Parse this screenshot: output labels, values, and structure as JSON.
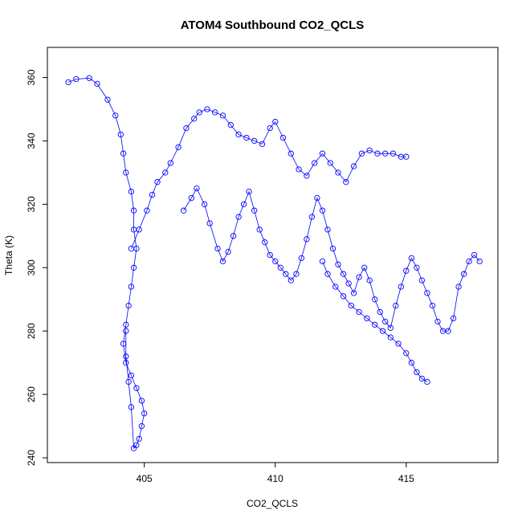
{
  "chart_data": {
    "type": "scatter",
    "title": "ATOM4 Southbound CO2_QCLS",
    "xlabel": "CO2_QCLS",
    "ylabel": "Theta (K)",
    "xlim": [
      401.3,
      418.5
    ],
    "ylim": [
      238.5,
      369.5
    ],
    "xticks": [
      405,
      410,
      415
    ],
    "yticks": [
      240,
      260,
      280,
      300,
      320,
      340,
      360
    ],
    "grid": false,
    "marker": "open-circle",
    "connected": true,
    "color": "#0000ff",
    "series": [
      {
        "x": [
          402.1,
          402.4,
          402.9,
          403.2,
          403.6,
          403.9,
          404.1,
          404.2,
          404.3,
          404.5,
          404.6,
          404.6,
          404.7,
          404.6,
          404.5,
          404.4,
          404.3,
          404.2,
          404.3,
          404.5,
          404.7,
          404.9,
          405.0,
          404.9,
          404.8,
          404.7,
          404.6,
          404.5,
          404.4,
          404.3,
          404.3
        ],
        "y": [
          358.5,
          359.5,
          359.8,
          358.0,
          353.0,
          348.0,
          342.0,
          336.0,
          330.0,
          324.0,
          318.0,
          312.0,
          306.0,
          300.0,
          294.0,
          288.0,
          282.0,
          276.0,
          270.0,
          266.0,
          262.0,
          258.0,
          254.0,
          250.0,
          246.0,
          244.0,
          243.0,
          256.0,
          264.0,
          272.0,
          280.0
        ]
      },
      {
        "x": [
          404.5,
          404.8,
          405.1,
          405.3,
          405.5,
          405.8,
          406.0,
          406.3,
          406.6,
          406.9,
          407.1,
          407.4,
          407.7,
          408.0,
          408.3,
          408.6,
          408.9,
          409.2,
          409.5,
          409.8,
          410.0,
          410.3,
          410.6,
          410.9,
          411.2,
          411.5,
          411.8,
          412.1,
          412.4,
          412.7,
          413.0,
          413.3,
          413.6,
          413.9,
          414.2,
          414.5,
          414.8,
          415.0
        ],
        "y": [
          306.0,
          312.0,
          318.0,
          323.0,
          327.0,
          330.0,
          333.0,
          338.0,
          344.0,
          347.0,
          349.0,
          350.0,
          349.0,
          348.0,
          345.0,
          342.0,
          341.0,
          340.0,
          339.0,
          344.0,
          346.0,
          341.0,
          336.0,
          331.0,
          329.0,
          333.0,
          336.0,
          333.0,
          330.0,
          327.0,
          332.0,
          336.0,
          337.0,
          336.0,
          336.0,
          336.0,
          335.0,
          335.0
        ]
      },
      {
        "x": [
          406.5,
          406.8,
          407.0,
          407.3,
          407.5,
          407.8,
          408.0,
          408.2,
          408.4,
          408.6,
          408.8,
          409.0,
          409.2,
          409.4,
          409.6,
          409.8,
          410.0,
          410.2,
          410.4,
          410.6,
          410.8,
          411.0,
          411.2,
          411.4,
          411.6,
          411.8,
          412.0,
          412.2,
          412.4,
          412.6,
          412.8,
          413.0,
          413.2,
          413.4,
          413.6,
          413.8,
          414.0,
          414.2,
          414.4,
          414.6,
          414.8,
          415.0,
          415.2,
          415.4,
          415.6,
          415.8,
          416.0,
          416.2,
          416.4,
          416.6,
          416.8,
          417.0,
          417.2,
          417.4,
          417.6,
          417.8
        ],
        "y": [
          318.0,
          322.0,
          325.0,
          320.0,
          314.0,
          306.0,
          302.0,
          305.0,
          310.0,
          316.0,
          320.0,
          324.0,
          318.0,
          312.0,
          308.0,
          304.0,
          302.0,
          300.0,
          298.0,
          296.0,
          298.0,
          303.0,
          309.0,
          316.0,
          322.0,
          318.0,
          312.0,
          306.0,
          301.0,
          298.0,
          295.0,
          292.0,
          297.0,
          300.0,
          296.0,
          290.0,
          286.0,
          283.0,
          281.0,
          288.0,
          294.0,
          299.0,
          303.0,
          300.0,
          296.0,
          292.0,
          288.0,
          283.0,
          280.0,
          280.0,
          284.0,
          294.0,
          298.0,
          302.0,
          304.0,
          302.0
        ]
      },
      {
        "x": [
          411.8,
          412.0,
          412.3,
          412.6,
          412.9,
          413.2,
          413.5,
          413.8,
          414.1,
          414.4,
          414.7,
          415.0,
          415.2,
          415.4,
          415.6,
          415.8
        ],
        "y": [
          302.0,
          298.0,
          294.0,
          291.0,
          288.0,
          286.0,
          284.0,
          282.0,
          280.0,
          278.0,
          276.0,
          273.0,
          270.0,
          267.0,
          265.0,
          264.0
        ]
      }
    ]
  }
}
